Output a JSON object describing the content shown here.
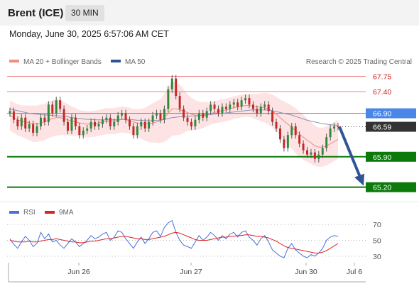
{
  "header": {
    "instrument": "Brent (ICE)",
    "timeframe": "30 MIN"
  },
  "datetime": "Monday, June 30, 2025 6:57:06 AM CET",
  "chart_data": {
    "type": "line",
    "legend": [
      {
        "label": "MA 20 + Bollinger Bands",
        "color": "#f28b82"
      },
      {
        "label": "MA 50",
        "color": "#2f5597"
      }
    ],
    "credit": "Research © 2025 Trading Central",
    "x_ticks": [
      "Jun 26",
      "Jun 27",
      "Jun 30",
      "Jul 6"
    ],
    "y_axis": {
      "min": 64.9,
      "max": 68.2
    },
    "levels": [
      {
        "value": 67.75,
        "label": "67.75",
        "kind": "resistance",
        "color": "#f08080"
      },
      {
        "value": 67.4,
        "label": "67.40",
        "kind": "resistance",
        "color": "#f08080"
      },
      {
        "value": 66.9,
        "label": "66.90",
        "kind": "pivot",
        "color": "#4a86e8"
      },
      {
        "value": 66.59,
        "label": "66.59",
        "kind": "last",
        "color": "#333333"
      },
      {
        "value": 65.9,
        "label": "65.90",
        "kind": "support",
        "color": "#0b7a0b"
      },
      {
        "value": 65.2,
        "label": "65.20",
        "kind": "support",
        "color": "#0b7a0b"
      }
    ],
    "price_close": [
      66.95,
      66.75,
      66.6,
      66.8,
      66.55,
      66.65,
      66.45,
      66.6,
      66.8,
      66.7,
      67.1,
      66.9,
      67.2,
      67.0,
      66.7,
      66.5,
      66.8,
      66.6,
      66.4,
      66.5,
      66.55,
      66.7,
      66.6,
      66.65,
      66.75,
      66.8,
      66.6,
      66.7,
      66.85,
      66.9,
      66.75,
      66.6,
      66.4,
      66.6,
      66.7,
      66.55,
      66.7,
      66.85,
      66.9,
      66.75,
      67.0,
      67.45,
      67.7,
      67.3,
      67.0,
      66.8,
      66.7,
      66.6,
      66.75,
      66.9,
      66.8,
      66.95,
      67.1,
      67.0,
      66.9,
      67.05,
      67.0,
      67.1,
      67.15,
      67.05,
      67.2,
      67.25,
      67.1,
      67.0,
      66.9,
      67.05,
      67.1,
      66.95,
      66.7,
      66.55,
      66.3,
      66.1,
      66.4,
      66.6,
      66.4,
      66.2,
      66.05,
      65.95,
      66.0,
      65.85,
      65.95,
      66.1,
      66.35,
      66.55,
      66.6,
      66.59
    ],
    "ma20": [
      66.85,
      66.8,
      66.75,
      66.72,
      66.7,
      66.68,
      66.66,
      66.66,
      66.68,
      66.7,
      66.75,
      66.78,
      66.8,
      66.8,
      66.78,
      66.75,
      66.72,
      66.7,
      66.68,
      66.66,
      66.65,
      66.65,
      66.66,
      66.68,
      66.7,
      66.72,
      66.72,
      66.72,
      66.74,
      66.76,
      66.75,
      66.73,
      66.7,
      66.68,
      66.66,
      66.65,
      66.66,
      66.68,
      66.7,
      66.72,
      66.8,
      66.9,
      67.0,
      67.0,
      66.98,
      66.95,
      66.92,
      66.88,
      66.86,
      66.85,
      66.86,
      66.88,
      66.9,
      66.92,
      66.94,
      66.96,
      66.98,
      67.0,
      67.03,
      67.05,
      67.07,
      67.08,
      67.08,
      67.07,
      67.05,
      67.04,
      67.03,
      67.0,
      66.95,
      66.88,
      66.8,
      66.72,
      66.65,
      66.58,
      66.5,
      66.42,
      66.35,
      66.28,
      66.22,
      66.15,
      66.12,
      66.12,
      66.15,
      66.2,
      66.25,
      66.3
    ],
    "ma50": [
      67.0,
      66.98,
      66.96,
      66.94,
      66.92,
      66.9,
      66.89,
      66.88,
      66.87,
      66.86,
      66.86,
      66.85,
      66.84,
      66.84,
      66.83,
      66.82,
      66.8,
      66.79,
      66.78,
      66.77,
      66.76,
      66.76,
      66.75,
      66.75,
      66.75,
      66.75,
      66.75,
      66.75,
      66.75,
      66.76,
      66.76,
      66.76,
      66.75,
      66.74,
      66.74,
      66.73,
      66.73,
      66.73,
      66.74,
      66.74,
      66.76,
      66.78,
      66.8,
      66.81,
      66.82,
      66.83,
      66.83,
      66.84,
      66.84,
      66.85,
      66.85,
      66.86,
      66.87,
      66.88,
      66.89,
      66.9,
      66.91,
      66.92,
      66.93,
      66.94,
      66.95,
      66.96,
      66.97,
      66.98,
      66.98,
      66.98,
      66.98,
      66.97,
      66.96,
      66.94,
      66.92,
      66.9,
      66.88,
      66.86,
      66.83,
      66.8,
      66.77,
      66.74,
      66.72,
      66.7,
      66.68,
      66.66,
      66.65,
      66.64,
      66.63,
      66.62
    ],
    "bb_width": [
      0.35,
      0.35,
      0.36,
      0.36,
      0.38,
      0.4,
      0.42,
      0.42,
      0.42,
      0.42,
      0.42,
      0.42,
      0.42,
      0.4,
      0.38,
      0.36,
      0.34,
      0.32,
      0.3,
      0.3,
      0.3,
      0.3,
      0.3,
      0.3,
      0.3,
      0.3,
      0.3,
      0.3,
      0.3,
      0.3,
      0.3,
      0.3,
      0.3,
      0.32,
      0.34,
      0.38,
      0.42,
      0.45,
      0.48,
      0.5,
      0.55,
      0.6,
      0.62,
      0.6,
      0.58,
      0.5,
      0.42,
      0.38,
      0.34,
      0.32,
      0.3,
      0.28,
      0.26,
      0.26,
      0.26,
      0.26,
      0.26,
      0.26,
      0.26,
      0.26,
      0.26,
      0.26,
      0.26,
      0.28,
      0.3,
      0.32,
      0.34,
      0.36,
      0.38,
      0.4,
      0.42,
      0.45,
      0.48,
      0.5,
      0.52,
      0.52,
      0.52,
      0.5,
      0.48,
      0.46,
      0.45,
      0.45,
      0.45,
      0.45,
      0.45,
      0.45
    ],
    "projection": {
      "from": 66.59,
      "to": 65.2
    },
    "rsi": {
      "legend": [
        {
          "label": "RSI",
          "color": "#4a6fdc"
        },
        {
          "label": "9MA",
          "color": "#dd2222"
        }
      ],
      "levels": [
        70,
        50,
        30
      ],
      "min": 20,
      "max": 80,
      "rsi_values": [
        52,
        45,
        40,
        48,
        55,
        50,
        42,
        46,
        60,
        52,
        58,
        48,
        50,
        44,
        40,
        46,
        52,
        48,
        42,
        46,
        50,
        56,
        52,
        54,
        58,
        60,
        50,
        54,
        62,
        60,
        52,
        46,
        40,
        48,
        54,
        46,
        52,
        60,
        62,
        55,
        66,
        72,
        75,
        60,
        50,
        44,
        42,
        40,
        48,
        56,
        50,
        54,
        60,
        56,
        50,
        56,
        52,
        58,
        60,
        54,
        60,
        62,
        54,
        50,
        44,
        52,
        56,
        48,
        38,
        34,
        30,
        28,
        40,
        46,
        38,
        34,
        30,
        28,
        32,
        30,
        34,
        40,
        50,
        54,
        56,
        55
      ],
      "ma_values": [
        50,
        49,
        48,
        48,
        48,
        49,
        48,
        48,
        49,
        50,
        51,
        51,
        52,
        51,
        50,
        49,
        48,
        48,
        47,
        47,
        48,
        49,
        49,
        50,
        51,
        52,
        52,
        53,
        54,
        55,
        55,
        54,
        53,
        52,
        52,
        51,
        51,
        52,
        53,
        54,
        55,
        57,
        59,
        60,
        59,
        57,
        55,
        53,
        51,
        50,
        50,
        50,
        51,
        52,
        53,
        54,
        54,
        55,
        55,
        56,
        56,
        57,
        57,
        56,
        55,
        55,
        54,
        53,
        51,
        49,
        46,
        43,
        41,
        40,
        39,
        38,
        37,
        36,
        35,
        34,
        34,
        35,
        37,
        40,
        43,
        46
      ]
    }
  }
}
